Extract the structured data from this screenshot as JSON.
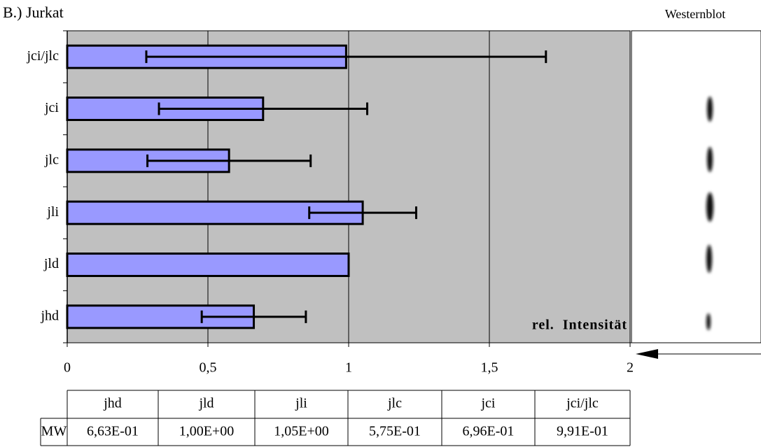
{
  "chart_data": {
    "type": "bar",
    "orientation": "horizontal",
    "title": "B.) Jurkat",
    "side_title": "Westernblot",
    "annotation": "rel.  Intensität",
    "categories": [
      "jci/jlc",
      "jci",
      "jlc",
      "jli",
      "jld",
      "jhd"
    ],
    "values": [
      0.991,
      0.696,
      0.575,
      1.05,
      1.0,
      0.663
    ],
    "errors": [
      0.71,
      0.37,
      0.29,
      0.19,
      0,
      0.185
    ],
    "color": "#9999ff",
    "background": "#c0c0c0",
    "xlim": [
      0,
      2
    ],
    "xticks": [
      0,
      {
        "value": 0.5,
        "label": "0,5"
      },
      1,
      {
        "value": 1.5,
        "label": "1,5"
      },
      2
    ],
    "grid": true
  },
  "table": {
    "header": [
      "jhd",
      "jld",
      "jli",
      "jlc",
      "jci",
      "jci/jlc"
    ],
    "rows": [
      [
        "MW",
        "6,63E-01",
        "1,00E+00",
        "1,05E+00",
        "5,75E-01",
        "6,96E-01",
        "9,91E-01"
      ]
    ]
  }
}
